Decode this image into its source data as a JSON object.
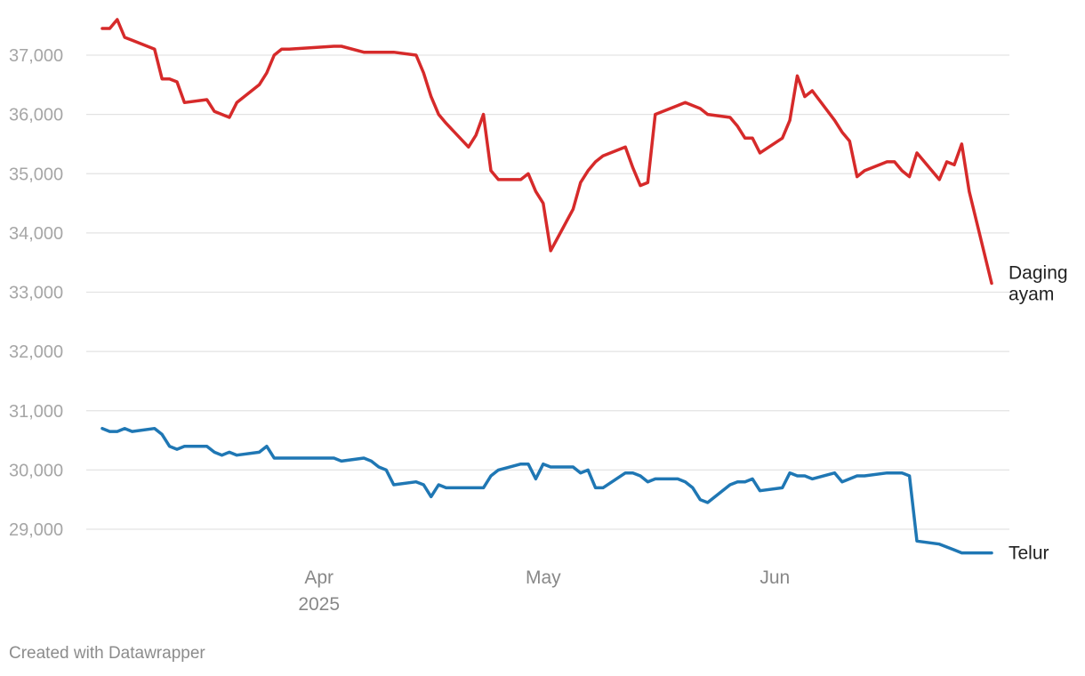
{
  "chart_data": {
    "type": "line",
    "title": "",
    "xlabel": "",
    "ylabel": "",
    "ylim": [
      28500,
      37700
    ],
    "y_ticks": [
      29000,
      30000,
      31000,
      32000,
      33000,
      34000,
      35000,
      36000,
      37000
    ],
    "y_tick_labels": [
      "29,000",
      "30,000",
      "31,000",
      "32,000",
      "33,000",
      "34,000",
      "35,000",
      "36,000",
      "37,000"
    ],
    "x_range": [
      "2025-03-03",
      "2025-06-30"
    ],
    "x_ticks": [
      {
        "date": "2025-04-01",
        "label": "Apr",
        "sublabel": "2025"
      },
      {
        "date": "2025-05-01",
        "label": "May",
        "sublabel": ""
      },
      {
        "date": "2025-06-01",
        "label": "Jun",
        "sublabel": ""
      }
    ],
    "grid": true,
    "series": [
      {
        "name": "Daging ayam",
        "label_lines": [
          "Daging",
          "ayam"
        ],
        "color": "#d62a2a",
        "x": [
          "2025-03-03",
          "2025-03-04",
          "2025-03-05",
          "2025-03-06",
          "2025-03-07",
          "2025-03-10",
          "2025-03-11",
          "2025-03-12",
          "2025-03-13",
          "2025-03-14",
          "2025-03-17",
          "2025-03-18",
          "2025-03-19",
          "2025-03-20",
          "2025-03-21",
          "2025-03-24",
          "2025-03-25",
          "2025-03-26",
          "2025-03-27",
          "2025-03-28",
          "2025-04-03",
          "2025-04-04",
          "2025-04-07",
          "2025-04-08",
          "2025-04-09",
          "2025-04-10",
          "2025-04-11",
          "2025-04-14",
          "2025-04-15",
          "2025-04-16",
          "2025-04-17",
          "2025-04-18",
          "2025-04-21",
          "2025-04-22",
          "2025-04-23",
          "2025-04-24",
          "2025-04-25",
          "2025-04-28",
          "2025-04-29",
          "2025-04-30",
          "2025-05-01",
          "2025-05-02",
          "2025-05-05",
          "2025-05-06",
          "2025-05-07",
          "2025-05-08",
          "2025-05-09",
          "2025-05-12",
          "2025-05-13",
          "2025-05-14",
          "2025-05-15",
          "2025-05-16",
          "2025-05-19",
          "2025-05-20",
          "2025-05-21",
          "2025-05-22",
          "2025-05-23",
          "2025-05-26",
          "2025-05-27",
          "2025-05-28",
          "2025-05-29",
          "2025-05-30",
          "2025-06-02",
          "2025-06-03",
          "2025-06-04",
          "2025-06-05",
          "2025-06-06",
          "2025-06-09",
          "2025-06-10",
          "2025-06-11",
          "2025-06-12",
          "2025-06-13",
          "2025-06-16",
          "2025-06-17",
          "2025-06-18",
          "2025-06-19",
          "2025-06-20",
          "2025-06-23",
          "2025-06-24",
          "2025-06-25",
          "2025-06-26",
          "2025-06-27",
          "2025-06-30"
        ],
        "values": [
          37450,
          37450,
          37600,
          37300,
          37250,
          37100,
          36600,
          36600,
          36550,
          36200,
          36250,
          36050,
          36000,
          35950,
          36200,
          36500,
          36700,
          37000,
          37100,
          37100,
          37150,
          37150,
          37050,
          37050,
          37050,
          37050,
          37050,
          37000,
          36700,
          36300,
          36000,
          35850,
          35450,
          35650,
          36000,
          35050,
          34900,
          34900,
          35000,
          34700,
          34500,
          33700,
          34400,
          34850,
          35050,
          35200,
          35300,
          35450,
          35100,
          34800,
          34850,
          36000,
          36150,
          36200,
          36150,
          36100,
          36000,
          35950,
          35800,
          35600,
          35600,
          35350,
          35600,
          35900,
          36650,
          36300,
          36400,
          35900,
          35700,
          35550,
          34950,
          35050,
          35200,
          35200,
          35050,
          34950,
          35350,
          34900,
          35200,
          35150,
          35500,
          34700,
          33150
        ]
      },
      {
        "name": "Telur",
        "label_lines": [
          "Telur"
        ],
        "color": "#1f77b4",
        "x": [
          "2025-03-03",
          "2025-03-04",
          "2025-03-05",
          "2025-03-06",
          "2025-03-07",
          "2025-03-10",
          "2025-03-11",
          "2025-03-12",
          "2025-03-13",
          "2025-03-14",
          "2025-03-17",
          "2025-03-18",
          "2025-03-19",
          "2025-03-20",
          "2025-03-21",
          "2025-03-24",
          "2025-03-25",
          "2025-03-26",
          "2025-03-27",
          "2025-03-28",
          "2025-04-03",
          "2025-04-04",
          "2025-04-07",
          "2025-04-08",
          "2025-04-09",
          "2025-04-10",
          "2025-04-11",
          "2025-04-14",
          "2025-04-15",
          "2025-04-16",
          "2025-04-17",
          "2025-04-18",
          "2025-04-21",
          "2025-04-22",
          "2025-04-23",
          "2025-04-24",
          "2025-04-25",
          "2025-04-28",
          "2025-04-29",
          "2025-04-30",
          "2025-05-01",
          "2025-05-02",
          "2025-05-05",
          "2025-05-06",
          "2025-05-07",
          "2025-05-08",
          "2025-05-09",
          "2025-05-12",
          "2025-05-13",
          "2025-05-14",
          "2025-05-15",
          "2025-05-16",
          "2025-05-19",
          "2025-05-20",
          "2025-05-21",
          "2025-05-22",
          "2025-05-23",
          "2025-05-26",
          "2025-05-27",
          "2025-05-28",
          "2025-05-29",
          "2025-05-30",
          "2025-06-02",
          "2025-06-03",
          "2025-06-04",
          "2025-06-05",
          "2025-06-06",
          "2025-06-09",
          "2025-06-10",
          "2025-06-11",
          "2025-06-12",
          "2025-06-13",
          "2025-06-16",
          "2025-06-17",
          "2025-06-18",
          "2025-06-19",
          "2025-06-20",
          "2025-06-23",
          "2025-06-24",
          "2025-06-25",
          "2025-06-26",
          "2025-06-27",
          "2025-06-30"
        ],
        "values": [
          30700,
          30650,
          30650,
          30700,
          30650,
          30700,
          30600,
          30400,
          30350,
          30400,
          30400,
          30300,
          30250,
          30300,
          30250,
          30300,
          30400,
          30200,
          30200,
          30200,
          30200,
          30150,
          30200,
          30150,
          30050,
          30000,
          29750,
          29800,
          29750,
          29550,
          29750,
          29700,
          29700,
          29700,
          29700,
          29900,
          30000,
          30100,
          30100,
          29850,
          30100,
          30050,
          30050,
          29950,
          30000,
          29700,
          29700,
          29950,
          29950,
          29900,
          29800,
          29850,
          29850,
          29800,
          29700,
          29500,
          29450,
          29750,
          29800,
          29800,
          29850,
          29650,
          29700,
          29950,
          29900,
          29900,
          29850,
          29950,
          29800,
          29850,
          29900,
          29900,
          29950,
          29950,
          29950,
          29900,
          28800,
          28750,
          28700,
          28650,
          28600,
          28600,
          28600
        ]
      }
    ]
  },
  "footer": {
    "credit": "Created with Datawrapper"
  }
}
